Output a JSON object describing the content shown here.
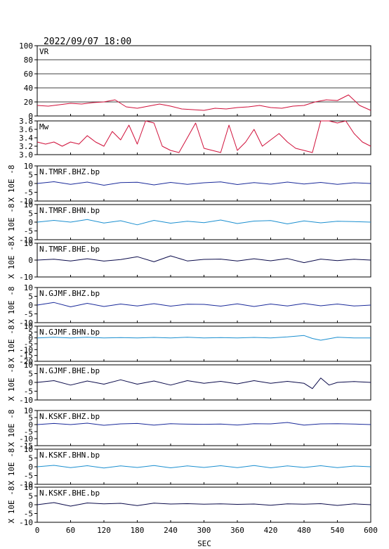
{
  "header": {
    "timestamp": "2022/09/07 18:00"
  },
  "chart_data": {
    "type": "line",
    "xlabel": "SEC",
    "xlim": [
      0,
      600
    ],
    "xticks": [
      0,
      60,
      120,
      180,
      240,
      300,
      360,
      420,
      480,
      540,
      600
    ],
    "panels": [
      {
        "label": "VR",
        "ylim": [
          0,
          100
        ],
        "yticks": [
          0,
          20,
          40,
          60,
          80,
          100
        ],
        "ylabel": "",
        "grid": "horizontal",
        "color": "#d0103a",
        "x": [
          0,
          20,
          40,
          60,
          80,
          100,
          120,
          140,
          160,
          180,
          200,
          220,
          240,
          260,
          280,
          300,
          320,
          340,
          360,
          380,
          400,
          420,
          440,
          460,
          480,
          500,
          520,
          540,
          560,
          580,
          600
        ],
        "values": [
          15,
          14,
          16,
          18,
          17,
          19,
          20,
          23,
          13,
          11,
          14,
          17,
          14,
          10,
          9,
          8,
          11,
          10,
          12,
          13,
          15,
          12,
          11,
          14,
          15,
          20,
          23,
          22,
          30,
          15,
          8
        ]
      },
      {
        "label": "Mw",
        "ylim": [
          3.0,
          3.8
        ],
        "yticks": [
          3.0,
          3.2,
          3.4,
          3.6,
          3.8
        ],
        "ylabel": "",
        "grid": "none",
        "color": "#d0103a",
        "x": [
          0,
          15,
          30,
          45,
          60,
          75,
          90,
          105,
          120,
          135,
          150,
          165,
          180,
          195,
          210,
          225,
          240,
          255,
          270,
          285,
          300,
          315,
          330,
          345,
          360,
          375,
          390,
          405,
          420,
          435,
          450,
          465,
          480,
          495,
          510,
          525,
          540,
          555,
          570,
          585,
          600
        ],
        "values": [
          3.3,
          3.25,
          3.3,
          3.2,
          3.3,
          3.25,
          3.45,
          3.3,
          3.2,
          3.55,
          3.35,
          3.7,
          3.25,
          3.8,
          3.75,
          3.2,
          3.1,
          3.05,
          3.4,
          3.75,
          3.15,
          3.1,
          3.05,
          3.7,
          3.1,
          3.3,
          3.6,
          3.2,
          3.35,
          3.5,
          3.3,
          3.15,
          3.1,
          3.05,
          3.8,
          3.8,
          3.75,
          3.8,
          3.5,
          3.3,
          3.2
        ]
      },
      {
        "label": "N.TMRF.BHZ.bp",
        "ylim": [
          -10,
          10
        ],
        "yticks": [
          -10,
          -5,
          0,
          5,
          10
        ],
        "ylabel": "X 10E -8",
        "grid": "none",
        "color": "#1a2a9a",
        "x": [
          0,
          30,
          60,
          90,
          120,
          150,
          180,
          210,
          240,
          270,
          300,
          330,
          360,
          390,
          420,
          450,
          480,
          510,
          540,
          570,
          600
        ],
        "values": [
          0,
          1,
          -0.5,
          0.8,
          -1,
          0.5,
          0.7,
          -0.8,
          0.6,
          -0.5,
          0.4,
          0.9,
          -0.6,
          0.5,
          -0.4,
          0.8,
          -0.3,
          0.6,
          -0.5,
          0.4,
          0
        ]
      },
      {
        "label": "N.TMRF.BHN.bp",
        "ylim": [
          -10,
          10
        ],
        "yticks": [
          -10,
          -5,
          0,
          5,
          10
        ],
        "ylabel": "X 10E -8",
        "grid": "none",
        "color": "#1b8fd0",
        "x": [
          0,
          30,
          60,
          90,
          120,
          150,
          180,
          210,
          240,
          270,
          300,
          330,
          360,
          390,
          420,
          450,
          480,
          510,
          540,
          570,
          600
        ],
        "values": [
          0,
          1,
          0,
          1.5,
          -0.5,
          0.8,
          -1.5,
          1,
          -0.6,
          0.5,
          -0.3,
          1.2,
          -0.8,
          0.6,
          0.9,
          -1,
          0.7,
          -0.4,
          0.5,
          0.3,
          0
        ]
      },
      {
        "label": "N.TMRF.BHE.bp",
        "ylim": [
          -10,
          10
        ],
        "yticks": [
          -10,
          0,
          10
        ],
        "ylabel": "X 10E -8",
        "grid": "none",
        "color": "#0a0a4a",
        "x": [
          0,
          30,
          60,
          90,
          120,
          150,
          180,
          210,
          240,
          270,
          300,
          330,
          360,
          390,
          420,
          450,
          480,
          510,
          540,
          570,
          600
        ],
        "values": [
          0,
          0.5,
          -0.5,
          0.8,
          -0.6,
          0.3,
          2,
          -1,
          2.5,
          -0.5,
          0.4,
          0.6,
          -0.5,
          0.8,
          -0.4,
          0.9,
          -1.5,
          0.6,
          -0.3,
          0.5,
          0
        ]
      },
      {
        "label": "N.GJMF.BHZ.bp",
        "ylim": [
          -10,
          10
        ],
        "yticks": [
          -10,
          -5,
          0,
          5,
          10
        ],
        "ylabel": "X 10E -8",
        "grid": "none",
        "color": "#1a2a9a",
        "x": [
          0,
          30,
          60,
          90,
          120,
          150,
          180,
          210,
          240,
          270,
          300,
          330,
          360,
          390,
          420,
          450,
          480,
          510,
          540,
          570,
          600
        ],
        "values": [
          0,
          1.5,
          -1,
          1,
          -0.8,
          0.6,
          -0.5,
          0.8,
          -0.6,
          0.5,
          0.4,
          -0.6,
          0.7,
          -0.8,
          0.6,
          -0.5,
          0.9,
          -0.4,
          0.6,
          -0.5,
          0
        ]
      },
      {
        "label": "N.GJMF.BHN.bp",
        "ylim": [
          -20,
          10
        ],
        "yticks": [
          -20,
          -15,
          -10,
          -5,
          0,
          5,
          10
        ],
        "ylabel": "X 10E -8",
        "grid": "none",
        "color": "#1b8fd0",
        "x": [
          0,
          30,
          60,
          90,
          120,
          150,
          180,
          210,
          240,
          270,
          300,
          330,
          360,
          390,
          420,
          450,
          480,
          495,
          510,
          540,
          570,
          600
        ],
        "values": [
          0,
          0.5,
          0,
          0.5,
          0,
          0.3,
          0,
          0.4,
          0,
          0.5,
          0,
          0.3,
          0,
          0.4,
          0,
          0.8,
          2,
          -0.5,
          -2,
          0.5,
          0,
          0
        ]
      },
      {
        "label": "N.GJMF.BHE.bp",
        "ylim": [
          -10,
          10
        ],
        "yticks": [
          -10,
          -5,
          0,
          5,
          10
        ],
        "ylabel": "X 10E -8",
        "grid": "none",
        "color": "#0a0a4a",
        "x": [
          0,
          30,
          60,
          90,
          120,
          150,
          180,
          210,
          240,
          270,
          300,
          330,
          360,
          390,
          420,
          450,
          480,
          495,
          510,
          525,
          540,
          570,
          600
        ],
        "values": [
          0,
          1,
          -1.5,
          0.8,
          -1,
          1.5,
          -1,
          0.8,
          -1.5,
          1,
          -0.5,
          0.6,
          -0.8,
          1,
          -0.5,
          0.6,
          -0.5,
          -3.5,
          2.5,
          -1.5,
          0,
          0.5,
          0
        ]
      },
      {
        "label": "N.KSKF.BHZ.bp",
        "ylim": [
          -15,
          10
        ],
        "yticks": [
          -15,
          -10,
          -5,
          0,
          5,
          10
        ],
        "ylabel": "X 10E -8",
        "grid": "none",
        "color": "#1a2a9a",
        "x": [
          0,
          30,
          60,
          90,
          120,
          150,
          180,
          210,
          240,
          270,
          300,
          330,
          360,
          390,
          420,
          450,
          480,
          510,
          540,
          570,
          600
        ],
        "values": [
          0,
          0.8,
          0,
          1,
          -0.5,
          0.5,
          0.8,
          -0.4,
          0.6,
          0.3,
          0.2,
          0.4,
          -0.3,
          0.6,
          0.5,
          1.5,
          -0.4,
          0.5,
          0.6,
          0.4,
          0
        ]
      },
      {
        "label": "N.KSKF.BHN.bp",
        "ylim": [
          -10,
          10
        ],
        "yticks": [
          -10,
          -5,
          0,
          5,
          10
        ],
        "ylabel": "X 10E -8",
        "grid": "none",
        "color": "#1b8fd0",
        "x": [
          0,
          30,
          60,
          90,
          120,
          150,
          180,
          210,
          240,
          270,
          300,
          330,
          360,
          390,
          420,
          450,
          480,
          510,
          540,
          570,
          600
        ],
        "values": [
          0,
          0.8,
          -0.5,
          0.6,
          -0.7,
          0.5,
          -0.4,
          0.7,
          -0.6,
          0.5,
          -0.4,
          0.6,
          -0.5,
          0.7,
          -0.6,
          0.5,
          -0.4,
          0.6,
          -0.5,
          0.4,
          0
        ]
      },
      {
        "label": "N.KSKF.BHE.bp",
        "ylim": [
          -10,
          10
        ],
        "yticks": [
          -10,
          -5,
          0,
          5,
          10
        ],
        "ylabel": "X 10E -8",
        "grid": "none",
        "color": "#0a0a4a",
        "x": [
          0,
          30,
          60,
          90,
          120,
          150,
          180,
          210,
          240,
          270,
          300,
          330,
          360,
          390,
          420,
          450,
          480,
          510,
          540,
          570,
          600
        ],
        "values": [
          0,
          1.2,
          -0.8,
          1,
          0.5,
          0.8,
          -0.5,
          0.9,
          0.4,
          0.6,
          0.3,
          0.5,
          0.2,
          0.4,
          -0.3,
          0.5,
          0.3,
          0.6,
          -0.4,
          0.5,
          0
        ]
      }
    ]
  }
}
